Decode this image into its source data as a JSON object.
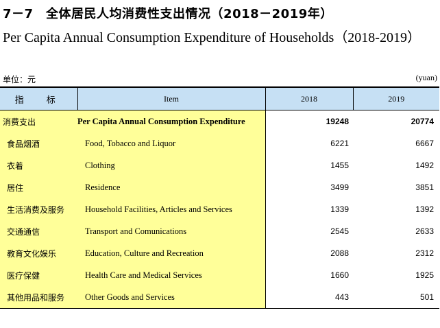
{
  "title_cn": "7－7　全体居民人均消费性支出情况（2018－2019年）",
  "title_en": "Per Capita Annual Consumption Expenditure of Households（2018-2019）",
  "unit_cn": "单位：元",
  "unit_en": "(yuan)",
  "headers": {
    "indicator_cn": "指　标",
    "item_en": "Item",
    "year_2018": "2018",
    "year_2019": "2019"
  },
  "rows": [
    {
      "cn": "消费支出",
      "en": "Per Capita Annual Consumption Expenditure",
      "v2018": "19248",
      "v2019": "20774"
    },
    {
      "cn": "食品烟酒",
      "en": "Food, Tobacco and Liquor",
      "v2018": "6221",
      "v2019": "6667"
    },
    {
      "cn": "衣着",
      "en": "Clothing",
      "v2018": "1455",
      "v2019": "1492"
    },
    {
      "cn": "居住",
      "en": "Residence",
      "v2018": "3499",
      "v2019": "3851"
    },
    {
      "cn": "生活消费及服务",
      "en": "Household Facilities, Articles and Services",
      "v2018": "1339",
      "v2019": "1392"
    },
    {
      "cn": "交通通信",
      "en": "Transport and Comunications",
      "v2018": "2545",
      "v2019": "2633"
    },
    {
      "cn": "教育文化娱乐",
      "en": "Education, Culture and Recreation",
      "v2018": "2088",
      "v2019": "2312"
    },
    {
      "cn": "医疗保健",
      "en": "Health Care and Medical Services",
      "v2018": "1660",
      "v2019": "1925"
    },
    {
      "cn": "其他用品和服务",
      "en": "Other Goods and Services",
      "v2018": "443",
      "v2019": "501"
    }
  ],
  "colors": {
    "header_bg": "#c6e0f4",
    "label_bg": "#ffff99"
  }
}
